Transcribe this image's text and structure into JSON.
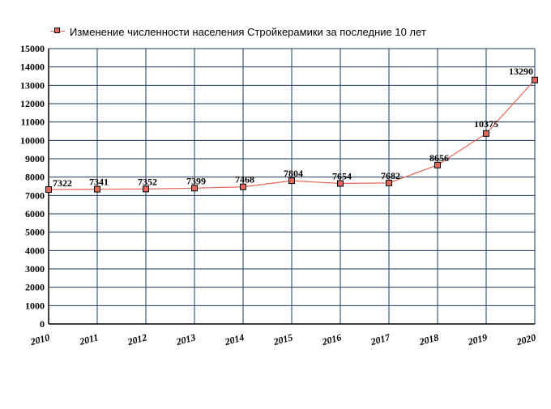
{
  "chart_data": {
    "type": "line",
    "title": "",
    "xlabel": "",
    "ylabel": "",
    "x": [
      "2010",
      "2011",
      "2012",
      "2013",
      "2014",
      "2015",
      "2016",
      "2017",
      "2018",
      "2019",
      "2020"
    ],
    "series": [
      {
        "name": "Изменение численности населения Стройкерамики за последние 10 лет",
        "values": [
          7322,
          7341,
          7352,
          7399,
          7468,
          7804,
          7654,
          7682,
          8656,
          10375,
          13290
        ],
        "labels": [
          "7322",
          "7341",
          "7352",
          "7399",
          "7468",
          "7804",
          "7654",
          "7682",
          "8656",
          "10375",
          "13290"
        ]
      }
    ],
    "ylim": [
      0,
      15000
    ],
    "y_ticks": [
      "0",
      "1000",
      "2000",
      "3000",
      "4000",
      "5000",
      "6000",
      "7000",
      "8000",
      "9000",
      "10000",
      "11000",
      "12000",
      "13000",
      "14000",
      "15000"
    ],
    "grid": true,
    "legend_placement": "top-left",
    "colors": {
      "line": "#e0685a",
      "marker_fill": "#e0685a",
      "grid": "#1a3b5c",
      "axis": "#000000"
    }
  }
}
